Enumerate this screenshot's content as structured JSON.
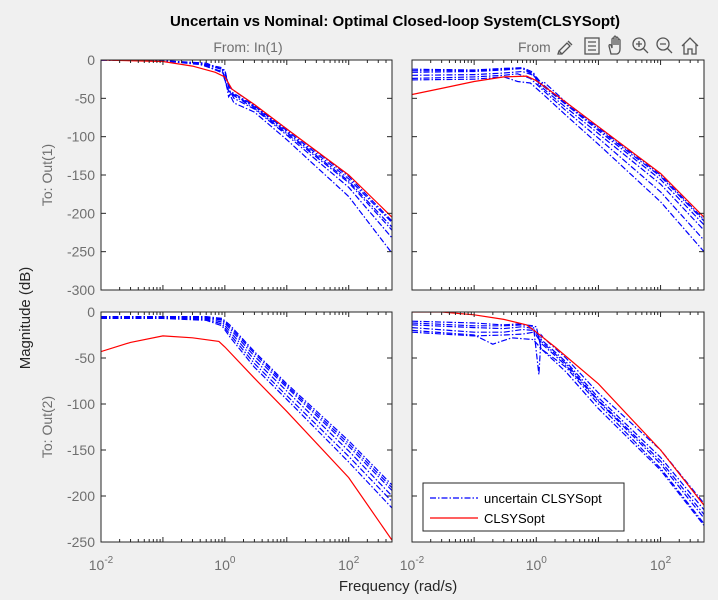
{
  "chart_data": {
    "type": "line",
    "title": "Uncertain vs Nominal: Optimal Closed-loop System(CLSYSopt)",
    "xlabel": "Frequency  (rad/s)",
    "ylabel": "Magnitude (dB)",
    "x_scale": "log",
    "xlim": [
      0.01,
      500
    ],
    "x_ticks": [
      0.01,
      1,
      100
    ],
    "x_tick_labels": [
      {
        "base": "10",
        "exp": "-2"
      },
      {
        "base": "10",
        "exp": "0"
      },
      {
        "base": "10",
        "exp": "2"
      }
    ],
    "column_titles": [
      "From: In(1)",
      "From"
    ],
    "row_titles": [
      "To: Out(1)",
      "To: Out(2)"
    ],
    "row_ylim": [
      [
        -300,
        0
      ],
      [
        -250,
        0
      ]
    ],
    "row_y_ticks": [
      [
        0,
        -50,
        -100,
        -150,
        -200,
        -250,
        -300
      ],
      [
        0,
        -50,
        -100,
        -150,
        -200,
        -250
      ]
    ],
    "legend": {
      "position": "lower-left of bottom-right panel",
      "entries": [
        {
          "label": "uncertain CLSYSopt",
          "color": "#0000ff",
          "style": "dash-dot"
        },
        {
          "label": "CLSYSopt",
          "color": "#ff0000",
          "style": "solid"
        }
      ]
    },
    "series_colors": {
      "uncertain": "#0000ff",
      "nominal": "#ff0000"
    },
    "panels": [
      {
        "row": 0,
        "col": 0,
        "nominal": {
          "x": [
            0.01,
            0.1,
            0.3,
            0.7,
            1,
            1.3,
            3,
            10,
            100,
            500
          ],
          "y": [
            0,
            -2,
            -8,
            -16,
            -22,
            -38,
            -58,
            -90,
            -150,
            -205
          ]
        },
        "uncertain": [
          {
            "x": [
              0.01,
              0.1,
              0.4,
              0.9,
              1.05,
              1.15,
              1.3,
              3,
              10,
              100,
              500
            ],
            "y": [
              0,
              -1,
              -4,
              -10,
              -30,
              -48,
              -42,
              -60,
              -92,
              -155,
              -212
            ]
          },
          {
            "x": [
              0.01,
              0.1,
              0.4,
              0.9,
              1.1,
              1.3,
              3,
              10,
              100,
              500
            ],
            "y": [
              0,
              -1,
              -5,
              -12,
              -38,
              -45,
              -63,
              -96,
              -160,
              -222
            ]
          },
          {
            "x": [
              0.01,
              0.1,
              0.5,
              1.0,
              1.2,
              1.4,
              3,
              10,
              100,
              500
            ],
            "y": [
              0,
              -1,
              -4,
              -14,
              -40,
              -50,
              -64,
              -98,
              -166,
              -232
            ]
          },
          {
            "x": [
              0.01,
              0.1,
              0.4,
              0.9,
              1.2,
              1.4,
              3,
              10,
              100,
              500
            ],
            "y": [
              0,
              -1,
              -6,
              -15,
              -45,
              -56,
              -68,
              -104,
              -178,
              -252
            ]
          },
          {
            "x": [
              0.01,
              0.1,
              0.4,
              1.0,
              1.2,
              3,
              10,
              100,
              500
            ],
            "y": [
              0,
              -1,
              -5,
              -18,
              -36,
              -59,
              -90,
              -152,
              -210
            ]
          },
          {
            "x": [
              0.01,
              0.1,
              0.4,
              1.0,
              1.2,
              3,
              10,
              100,
              500
            ],
            "y": [
              0,
              -1,
              -4,
              -13,
              -42,
              -61,
              -94,
              -158,
              -218
            ]
          }
        ]
      },
      {
        "row": 0,
        "col": 1,
        "nominal": {
          "x": [
            0.01,
            0.03,
            0.1,
            0.3,
            0.7,
            1,
            3,
            10,
            100,
            500
          ],
          "y": [
            -45,
            -37,
            -28,
            -22,
            -21,
            -27,
            -55,
            -87,
            -148,
            -205
          ]
        },
        "uncertain": [
          {
            "x": [
              0.01,
              0.1,
              0.3,
              0.6,
              0.9,
              1.1,
              1.3,
              3,
              10,
              100,
              500
            ],
            "y": [
              -12,
              -13,
              -11,
              -10,
              -16,
              -35,
              -28,
              -55,
              -88,
              -150,
              -208
            ]
          },
          {
            "x": [
              0.01,
              0.1,
              0.3,
              0.6,
              0.9,
              1.2,
              3,
              10,
              100,
              500
            ],
            "y": [
              -16,
              -15,
              -13,
              -11,
              -18,
              -32,
              -58,
              -92,
              -156,
              -215
            ]
          },
          {
            "x": [
              0.01,
              0.1,
              0.3,
              0.6,
              0.9,
              1.2,
              3,
              10,
              100,
              500
            ],
            "y": [
              -20,
              -19,
              -17,
              -15,
              -20,
              -35,
              -62,
              -96,
              -162,
              -222
            ]
          },
          {
            "x": [
              0.01,
              0.1,
              0.3,
              0.5,
              0.8,
              1.3,
              3,
              10,
              100,
              500
            ],
            "y": [
              -24,
              -22,
              -20,
              -18,
              -24,
              -40,
              -66,
              -102,
              -172,
              -235
            ]
          },
          {
            "x": [
              0.01,
              0.1,
              0.3,
              0.5,
              0.8,
              1.3,
              3,
              10,
              100,
              500
            ],
            "y": [
              -26,
              -25,
              -22,
              -28,
              -30,
              -45,
              -72,
              -110,
              -185,
              -250
            ]
          },
          {
            "x": [
              0.01,
              0.1,
              0.3,
              0.6,
              1.0,
              1.2,
              3,
              10,
              100,
              500
            ],
            "y": [
              -14,
              -14,
              -12,
              -11,
              -22,
              -30,
              -57,
              -90,
              -152,
              -210
            ]
          }
        ]
      },
      {
        "row": 1,
        "col": 0,
        "nominal": {
          "x": [
            0.01,
            0.03,
            0.1,
            0.3,
            0.8,
            1,
            3,
            10,
            100,
            500
          ],
          "y": [
            -43,
            -33,
            -26,
            -28,
            -32,
            -38,
            -72,
            -108,
            -180,
            -248
          ]
        },
        "uncertain": [
          {
            "x": [
              0.01,
              0.1,
              0.5,
              0.9,
              1.2,
              3,
              10,
              100,
              500
            ],
            "y": [
              -5,
              -5,
              -5,
              -7,
              -14,
              -43,
              -78,
              -140,
              -188
            ]
          },
          {
            "x": [
              0.01,
              0.1,
              0.5,
              0.9,
              1.2,
              3,
              10,
              100,
              500
            ],
            "y": [
              -6,
              -6,
              -6,
              -9,
              -18,
              -48,
              -82,
              -146,
              -194
            ]
          },
          {
            "x": [
              0.01,
              0.1,
              0.5,
              0.9,
              1.2,
              3,
              10,
              100,
              500
            ],
            "y": [
              -6,
              -6,
              -7,
              -11,
              -21,
              -52,
              -86,
              -151,
              -200
            ]
          },
          {
            "x": [
              0.01,
              0.1,
              0.5,
              0.9,
              1.2,
              3,
              10,
              100,
              500
            ],
            "y": [
              -7,
              -7,
              -8,
              -13,
              -24,
              -56,
              -91,
              -157,
              -206
            ]
          },
          {
            "x": [
              0.01,
              0.1,
              0.5,
              0.9,
              1.2,
              3,
              10,
              100,
              500
            ],
            "y": [
              -7,
              -7,
              -9,
              -15,
              -27,
              -60,
              -95,
              -163,
              -213
            ]
          },
          {
            "x": [
              0.01,
              0.1,
              0.5,
              0.9,
              1.2,
              3,
              10,
              100,
              500
            ],
            "y": [
              -5,
              -5,
              -6,
              -8,
              -16,
              -45,
              -80,
              -143,
              -191
            ]
          }
        ]
      },
      {
        "row": 1,
        "col": 1,
        "nominal": {
          "x": [
            0.01,
            0.03,
            0.1,
            0.3,
            0.7,
            1,
            2,
            10,
            100,
            500
          ],
          "y": [
            0,
            0,
            -3,
            -8,
            -14,
            -22,
            -38,
            -78,
            -150,
            -210
          ]
        },
        "uncertain": [
          {
            "x": [
              0.01,
              0.1,
              0.3,
              0.5,
              0.9,
              1.1,
              1.2,
              1.4,
              3,
              10,
              100,
              500
            ],
            "y": [
              -10,
              -12,
              -14,
              -13,
              -15,
              -68,
              -25,
              -30,
              -50,
              -88,
              -150,
              -208
            ]
          },
          {
            "x": [
              0.01,
              0.1,
              0.3,
              0.6,
              0.9,
              1.2,
              3,
              10,
              100,
              500
            ],
            "y": [
              -14,
              -17,
              -18,
              -16,
              -18,
              -30,
              -54,
              -93,
              -158,
              -215
            ]
          },
          {
            "x": [
              0.01,
              0.1,
              0.3,
              0.6,
              0.9,
              1.2,
              3,
              10,
              100,
              500
            ],
            "y": [
              -17,
              -22,
              -22,
              -19,
              -20,
              -34,
              -58,
              -97,
              -165,
              -224
            ]
          },
          {
            "x": [
              0.01,
              0.1,
              0.2,
              0.4,
              0.9,
              1.2,
              3,
              10,
              100,
              500
            ],
            "y": [
              -20,
              -25,
              -35,
              -28,
              -30,
              -40,
              -65,
              -105,
              -172,
              -232
            ]
          },
          {
            "x": [
              0.01,
              0.1,
              0.3,
              0.6,
              0.9,
              1.2,
              3,
              10,
              100,
              500
            ],
            "y": [
              -22,
              -26,
              -25,
              -24,
              -22,
              -32,
              -56,
              -96,
              -162,
              -220
            ]
          },
          {
            "x": [
              0.01,
              0.1,
              0.3,
              0.6,
              1.0,
              1.2,
              3,
              10,
              100,
              500
            ],
            "y": [
              -12,
              -15,
              -15,
              -14,
              -16,
              -40,
              -60,
              -100,
              -170,
              -230
            ]
          }
        ]
      }
    ]
  }
}
